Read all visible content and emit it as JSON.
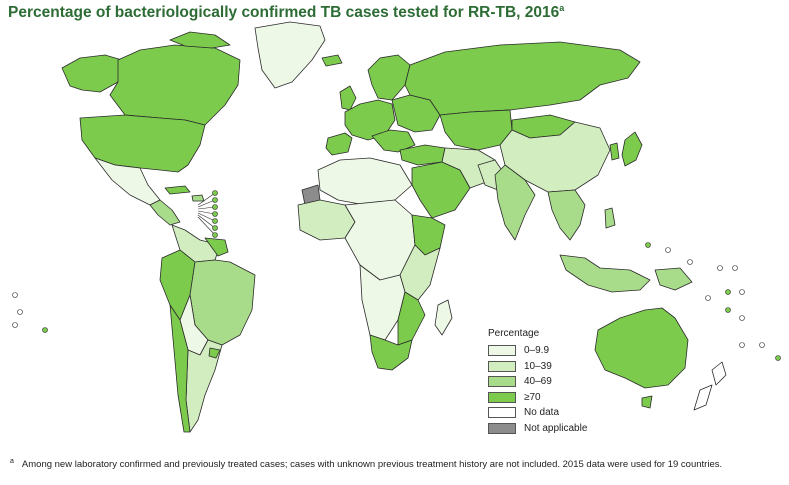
{
  "title": {
    "text": "Percentage of bacteriologically confirmed TB cases tested for RR-TB, 2016",
    "superscript": "a"
  },
  "colors": {
    "range_0_9_9": "#eef8e6",
    "range_10_39": "#d2edc0",
    "range_40_69": "#a8dc8a",
    "range_70_plus": "#7ccb4d",
    "no_data": "#ffffff",
    "not_applicable": "#8c8c8c",
    "border": "#2b2b2b",
    "title": "#2d6c35"
  },
  "legend": {
    "title": "Percentage",
    "items": [
      {
        "label": "0–9.9",
        "color": "#eef8e6"
      },
      {
        "label": "10–39",
        "color": "#d2edc0"
      },
      {
        "label": "40–69",
        "color": "#a8dc8a"
      },
      {
        "label": "≥70",
        "color": "#7ccb4d"
      },
      {
        "label": "No data",
        "color": "#ffffff"
      },
      {
        "label": "Not applicable",
        "color": "#8c8c8c"
      }
    ]
  },
  "footnote": {
    "mark": "a",
    "text": "Among new laboratory confirmed and previously treated cases; cases with unknown previous treatment history are not included. 2015 data were used for 19 countries."
  }
}
